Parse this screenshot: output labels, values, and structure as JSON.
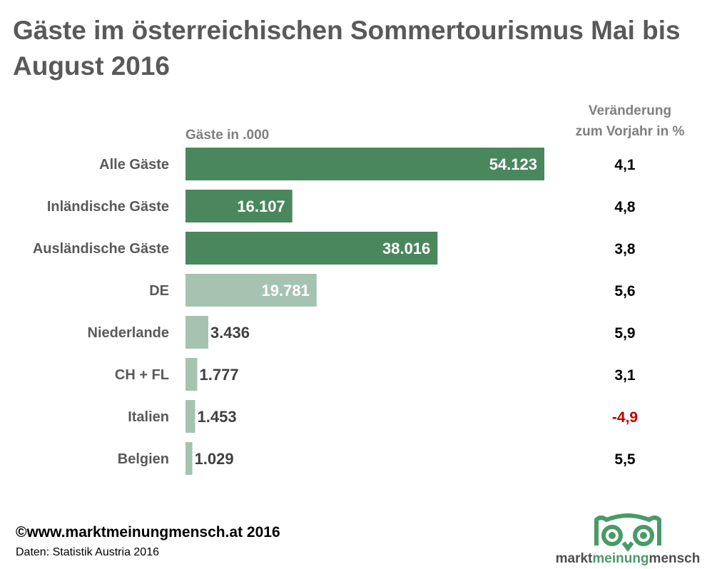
{
  "chart_data": {
    "type": "bar",
    "title": "Gäste im österreichischen Sommertourismus Mai bis August 2016",
    "xlabel": "Gäste in .000",
    "change_header": [
      "Veränderung",
      "zum Vorjahr in %"
    ],
    "categories": [
      "Alle Gäste",
      "Inländische Gäste",
      "Ausländische Gäste",
      "DE",
      "Niederlande",
      "CH + FL",
      "Italien",
      "Belgien"
    ],
    "values": [
      54.123,
      16.107,
      38.016,
      19.781,
      3.436,
      1.777,
      1.453,
      1.029
    ],
    "value_labels": [
      "54.123",
      "16.107",
      "38.016",
      "19.781",
      "3.436",
      "1.777",
      "1.453",
      "1.029"
    ],
    "changes": [
      "4,1",
      "4,8",
      "3,8",
      "5,6",
      "5,9",
      "3,1",
      "-4,9",
      "5,5"
    ],
    "change_values": [
      4.1,
      4.8,
      3.8,
      5.6,
      5.9,
      3.1,
      -4.9,
      5.5
    ],
    "bar_groups": [
      "total",
      "total",
      "total",
      "country",
      "country",
      "country",
      "country",
      "country"
    ],
    "colors": {
      "total": "#4a875d",
      "country": "#a5c3b0",
      "negative": "#c00000",
      "text": "#595959",
      "value_dark": "#404040"
    }
  },
  "footer": {
    "copyright": "©www.marktmeinungmensch.at 2016",
    "source": "Daten: Statistik Austria 2016"
  },
  "logo": {
    "part1": "markt",
    "part2": "meinung",
    "part3": "mensch"
  }
}
